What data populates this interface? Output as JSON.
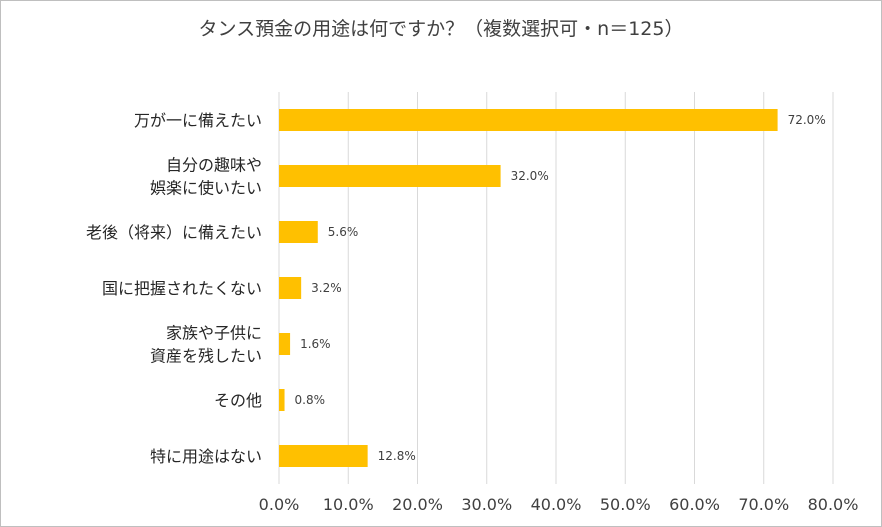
{
  "chart_data": {
    "type": "bar",
    "orientation": "horizontal",
    "title": "タンス預金の用途は何ですか？（複数選択可・n＝125）",
    "xlabel": "",
    "ylabel": "",
    "xlim": [
      0,
      80
    ],
    "grid": true,
    "color": "#FFC000",
    "categories": [
      [
        "万が一に備えたい"
      ],
      [
        "自分の趣味や",
        "娯楽に使いたい"
      ],
      [
        "老後（将来）に備えたい"
      ],
      [
        "国に把握されたくない"
      ],
      [
        "家族や子供に",
        "資産を残したい"
      ],
      [
        "その他"
      ],
      [
        "特に用途はない"
      ]
    ],
    "values": [
      72.0,
      32.0,
      5.6,
      3.2,
      1.6,
      0.8,
      12.8
    ],
    "data_labels": [
      "72.0%",
      "32.0%",
      "5.6%",
      "3.2%",
      "1.6%",
      "0.8%",
      "12.8%"
    ],
    "ticks": [
      0,
      10,
      20,
      30,
      40,
      50,
      60,
      70,
      80
    ],
    "tick_labels": [
      "0.0%",
      "10.0%",
      "20.0%",
      "30.0%",
      "40.0%",
      "50.0%",
      "60.0%",
      "70.0%",
      "80.0%"
    ]
  }
}
